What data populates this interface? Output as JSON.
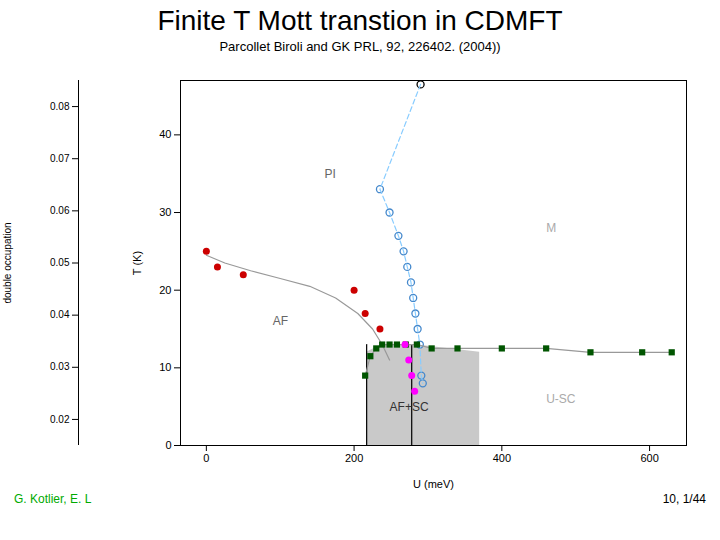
{
  "chart_data": [
    {
      "type": "scatter",
      "title": "Finite T Mott transtion in CDMFT",
      "subtitle": "Parcollet Biroli and GK PRL,  92,  226402. (2004))",
      "xlabel": "U (meV)",
      "ylabel": "T (K)",
      "xlim": [
        -35,
        650
      ],
      "ylim": [
        0,
        47
      ],
      "xticks": [
        0,
        200,
        400,
        600
      ],
      "yticks": [
        0,
        10,
        20,
        30,
        40
      ],
      "series": [
        {
          "type": "area",
          "color": "#c0c0c0",
          "x": [
            217,
            217,
            238,
            280,
            370,
            370,
            217
          ],
          "values": [
            0,
            12,
            13,
            13,
            12,
            0,
            0
          ]
        },
        {
          "type": "line",
          "color": "#000000",
          "x": [
            217,
            217
          ],
          "values": [
            0,
            13
          ]
        },
        {
          "type": "line",
          "color": "#000000",
          "x": [
            278,
            278
          ],
          "values": [
            0,
            13
          ]
        },
        {
          "type": "line",
          "color": "#999999",
          "x": [
            0,
            25,
            60,
            100,
            140,
            175,
            205,
            225,
            238,
            248
          ],
          "values": [
            24.5,
            23.5,
            22.5,
            21.5,
            20.5,
            19,
            17,
            15,
            13,
            11
          ]
        },
        {
          "type": "scatter",
          "color": "#cc0000",
          "marker": "circle",
          "x": [
            0,
            15,
            50,
            200,
            215,
            235
          ],
          "values": [
            25,
            23,
            22,
            20,
            17,
            15
          ]
        },
        {
          "type": "scatter",
          "color": "#4488cc",
          "marker": "open_circle",
          "x": [
            235,
            248,
            260,
            267,
            272,
            277,
            280,
            283,
            286,
            289,
            291,
            293
          ],
          "values": [
            33,
            30,
            27,
            25,
            23,
            21,
            19,
            17,
            15,
            13,
            9,
            8
          ]
        },
        {
          "type": "scatter",
          "color": "#000000",
          "marker": "open_circle",
          "x": [
            290
          ],
          "values": [
            46.5
          ]
        },
        {
          "type": "line",
          "color": "#88ccff",
          "line_style": "dashed",
          "x": [
            290,
            235,
            248,
            260,
            267,
            272,
            277,
            280,
            283,
            286,
            289,
            291,
            293
          ],
          "values": [
            46.5,
            33,
            30,
            27,
            25,
            23,
            21,
            19,
            17,
            15,
            13,
            9,
            8
          ]
        },
        {
          "type": "line",
          "color": "#999999",
          "x": [
            215,
            222,
            230,
            238,
            248,
            258,
            270,
            285,
            305,
            340,
            400,
            460,
            520,
            590,
            630
          ],
          "values": [
            9,
            11.5,
            12.5,
            13,
            13,
            13,
            13,
            13,
            12.5,
            12.5,
            12.5,
            12.5,
            12,
            12,
            12
          ]
        },
        {
          "type": "scatter",
          "color": "#005500",
          "marker": "square",
          "x": [
            215,
            222,
            230,
            238,
            248,
            258,
            270,
            285,
            305,
            340,
            400,
            460,
            520,
            590,
            630
          ],
          "values": [
            9,
            11.5,
            12.5,
            13,
            13,
            13,
            13,
            13,
            12.5,
            12.5,
            12.5,
            12.5,
            12,
            12,
            12
          ]
        },
        {
          "type": "scatter",
          "color": "#ff00ff",
          "marker": "circle",
          "x": [
            269,
            274,
            278,
            282
          ],
          "values": [
            13,
            11,
            9,
            7
          ]
        }
      ],
      "annotations": [
        {
          "text": "AF",
          "x": 90,
          "y": 16,
          "color": "#666666"
        },
        {
          "text": "PI",
          "x": 160,
          "y": 35,
          "color": "#666666"
        },
        {
          "text": "M",
          "x": 460,
          "y": 28,
          "color": "#aaaaaa"
        },
        {
          "text": "U-SC",
          "x": 460,
          "y": 6,
          "color": "#aaaaaa"
        },
        {
          "text": "AF+SC",
          "x": 248,
          "y": 5,
          "color": "#333333"
        }
      ],
      "footnotes": [
        {
          "text": "G. Kotlier, E. L",
          "color": "#00aa00"
        },
        {
          "text": "10, 1/44",
          "color": "#000000"
        }
      ]
    },
    {
      "type": "line",
      "ylabel": "double occupation",
      "ylim": [
        0.015,
        0.085
      ],
      "yticks": [
        0.08,
        0.07,
        0.06,
        0.05,
        0.04,
        0.03,
        0.02
      ],
      "tick_labels": "y"
    }
  ]
}
